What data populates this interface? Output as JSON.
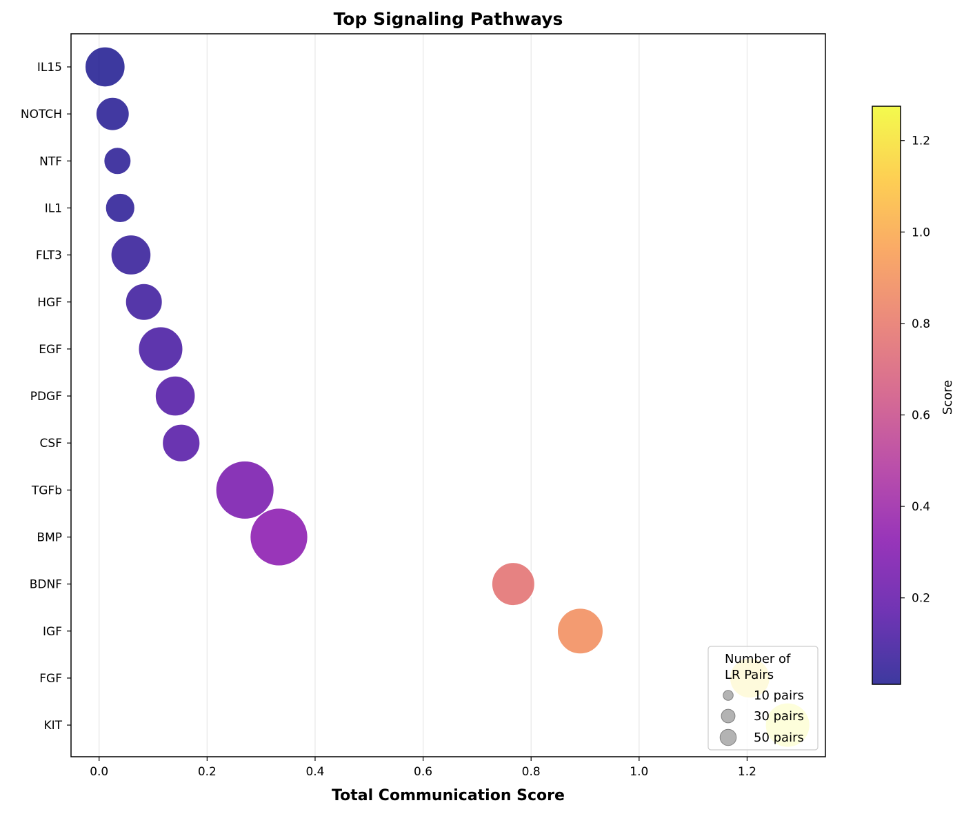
{
  "chart_data": {
    "type": "scatter",
    "title": "Top Signaling Pathways",
    "xlabel": "Total Communication Score",
    "ylabel": "",
    "xlim": [
      -0.052,
      1.345
    ],
    "xticks": [
      0.0,
      0.2,
      0.4,
      0.6,
      0.8,
      1.0,
      1.2
    ],
    "xtick_labels": [
      "0.0",
      "0.2",
      "0.4",
      "0.6",
      "0.8",
      "1.0",
      "1.2"
    ],
    "grid": "vertical",
    "points": [
      {
        "pathway": "IL15",
        "score": 0.011,
        "lr_pairs": 26
      },
      {
        "pathway": "NOTCH",
        "score": 0.025,
        "lr_pairs": 18
      },
      {
        "pathway": "NTF",
        "score": 0.034,
        "lr_pairs": 12
      },
      {
        "pathway": "IL1",
        "score": 0.039,
        "lr_pairs": 14
      },
      {
        "pathway": "FLT3",
        "score": 0.059,
        "lr_pairs": 26
      },
      {
        "pathway": "HGF",
        "score": 0.083,
        "lr_pairs": 22
      },
      {
        "pathway": "EGF",
        "score": 0.114,
        "lr_pairs": 32
      },
      {
        "pathway": "PDGF",
        "score": 0.141,
        "lr_pairs": 26
      },
      {
        "pathway": "CSF",
        "score": 0.152,
        "lr_pairs": 23
      },
      {
        "pathway": "TGFb",
        "score": 0.27,
        "lr_pairs": 55
      },
      {
        "pathway": "BMP",
        "score": 0.333,
        "lr_pairs": 54
      },
      {
        "pathway": "BDNF",
        "score": 0.767,
        "lr_pairs": 30
      },
      {
        "pathway": "IGF",
        "score": 0.891,
        "lr_pairs": 34
      },
      {
        "pathway": "FGF",
        "score": 1.205,
        "lr_pairs": 26
      },
      {
        "pathway": "KIT",
        "score": 1.275,
        "lr_pairs": 32
      }
    ],
    "legend": {
      "title_lines": [
        "Number of",
        "LR Pairs"
      ],
      "entries": [
        {
          "label": "10 pairs",
          "value": 10
        },
        {
          "label": "30 pairs",
          "value": 30
        },
        {
          "label": "50 pairs",
          "value": 50
        }
      ],
      "placement": "lower-right"
    },
    "colorbar": {
      "label": "Score",
      "colormap": "plasma",
      "range": [
        0.011,
        1.275
      ],
      "ticks": [
        0.2,
        0.4,
        0.6,
        0.8,
        1.0,
        1.2
      ],
      "tick_labels": [
        "0.2",
        "0.4",
        "0.6",
        "0.8",
        "1.0",
        "1.2"
      ]
    }
  }
}
